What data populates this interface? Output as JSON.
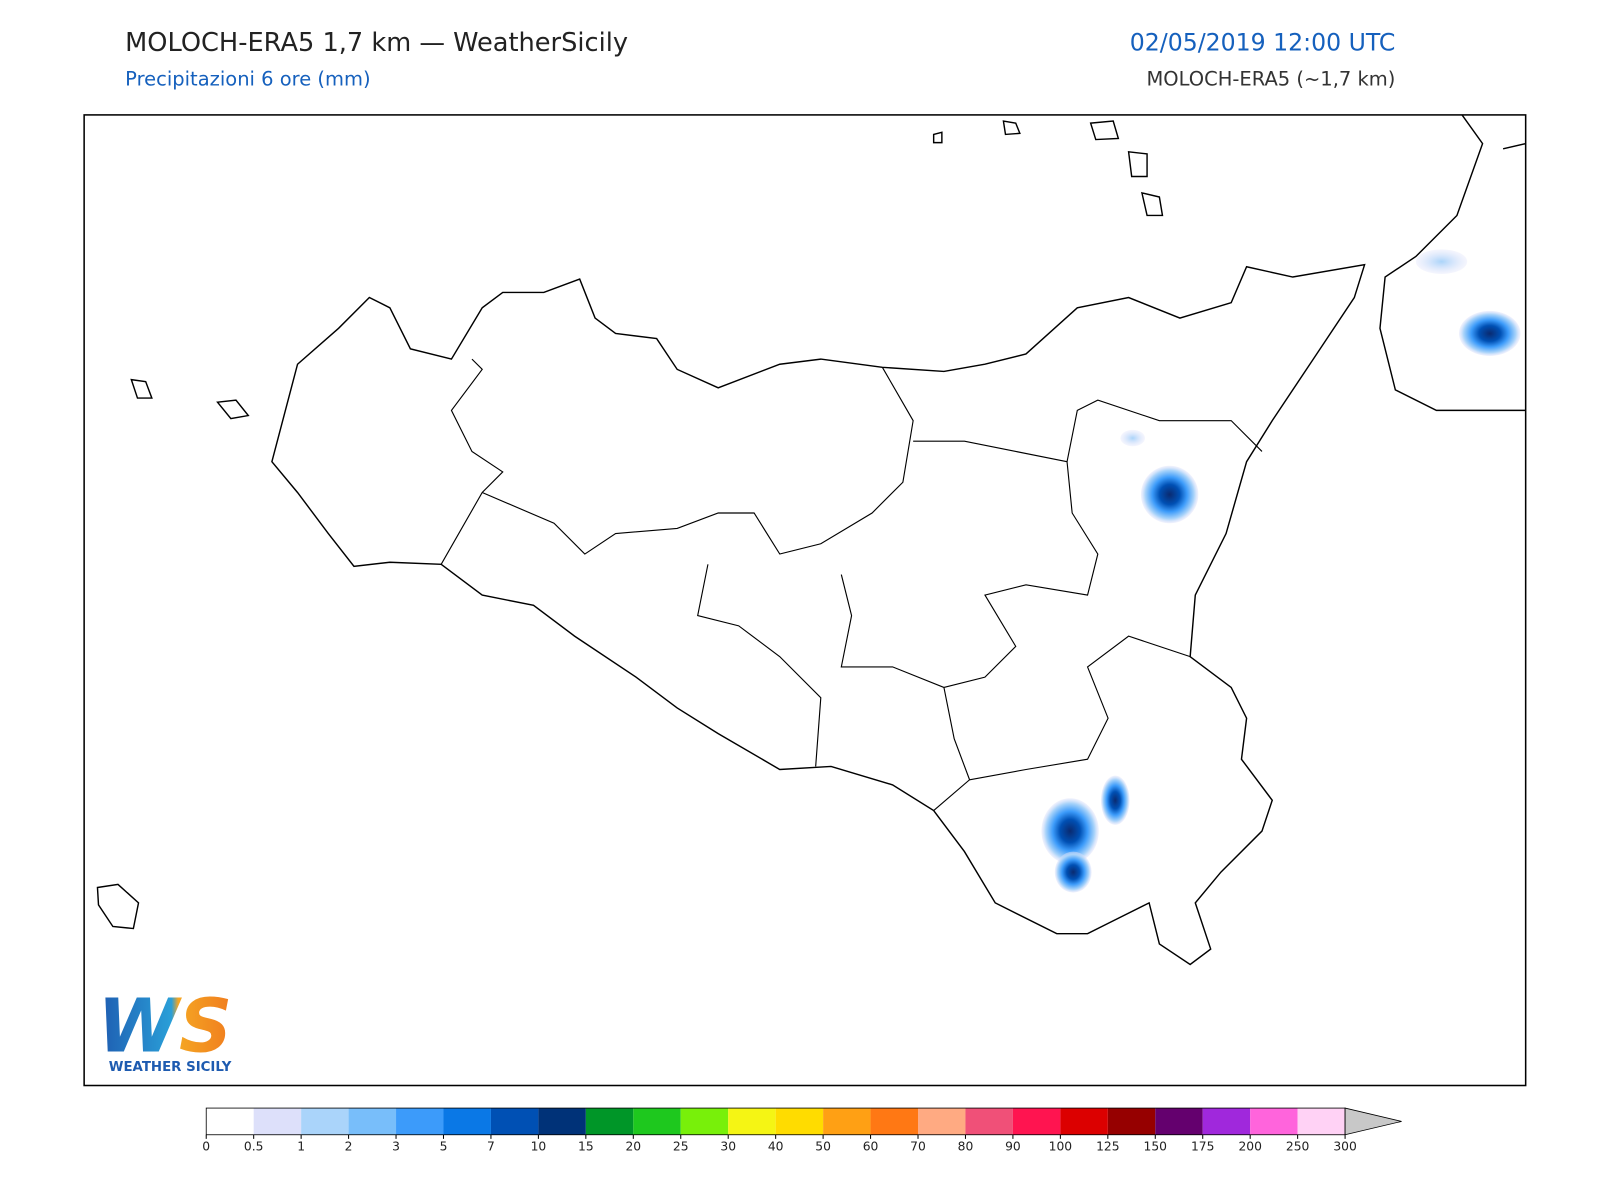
{
  "header": {
    "title": "MOLOCH-ERA5 1,7 km — WeatherSicily",
    "subtitle": "Precipitazioni 6 ore (mm)",
    "datetime": "02/05/2019 12:00 UTC",
    "model": "MOLOCH-ERA5 (~1,7 km)"
  },
  "logo": {
    "text": "WS",
    "caption": "WEATHER SICILY"
  },
  "colorbar": {
    "ticks": [
      0,
      0.5,
      1,
      2,
      3,
      5,
      7,
      10,
      15,
      20,
      25,
      30,
      40,
      50,
      60,
      70,
      80,
      90,
      100,
      125,
      150,
      175,
      200,
      250,
      300
    ],
    "colors": [
      "#ffffff",
      "#dde0fa",
      "#aad4fa",
      "#78befa",
      "#3c9bfa",
      "#0a78e6",
      "#0050b4",
      "#003278",
      "#009628",
      "#1ec81e",
      "#78f00a",
      "#f5f514",
      "#ffdc00",
      "#ffa014",
      "#ff7814",
      "#ffaa82",
      "#f05078",
      "#ff1450",
      "#dc0000",
      "#960000",
      "#64006e",
      "#a028dc",
      "#ff64dc",
      "#ffd2f5"
    ],
    "extend_color": "#c8c8c8"
  }
}
